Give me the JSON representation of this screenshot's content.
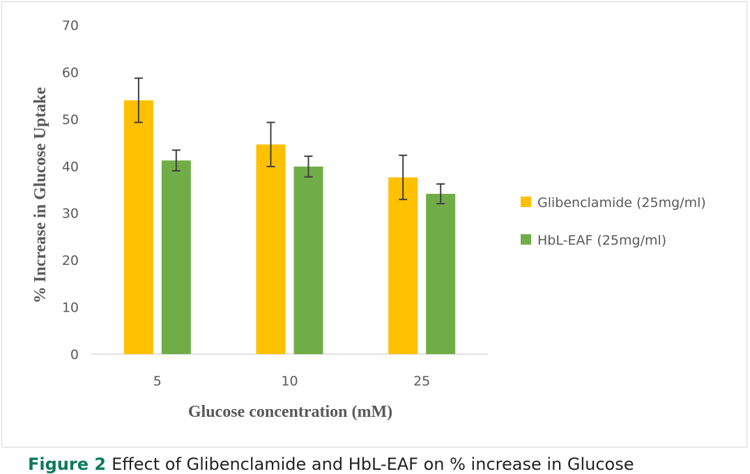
{
  "chart_data": {
    "type": "bar",
    "title": "",
    "xlabel": "Glucose concentration (mM)",
    "ylabel": "% Increase in Glucose Uptake",
    "categories": [
      "5",
      "10",
      "25"
    ],
    "ylim": [
      0,
      70
    ],
    "yticks": [
      "0",
      "10",
      "20",
      "30",
      "40",
      "50",
      "60",
      "70"
    ],
    "grid": false,
    "legend_position": "right",
    "series": [
      {
        "name": "Glibenclamide (25mg/ml)",
        "color": "#FFC000",
        "values": [
          54.0,
          44.6,
          37.6
        ],
        "error": [
          4.7,
          4.7,
          4.7
        ]
      },
      {
        "name": "HbL-EAF (25mg/ml)",
        "color": "#70AD47",
        "values": [
          41.2,
          39.9,
          34.1
        ],
        "error": [
          2.2,
          2.2,
          2.1
        ]
      }
    ]
  },
  "caption": {
    "label": "Figure 2",
    "text": "Effect of Glibenclamide and HbL-EAF on % increase in Glucose"
  }
}
